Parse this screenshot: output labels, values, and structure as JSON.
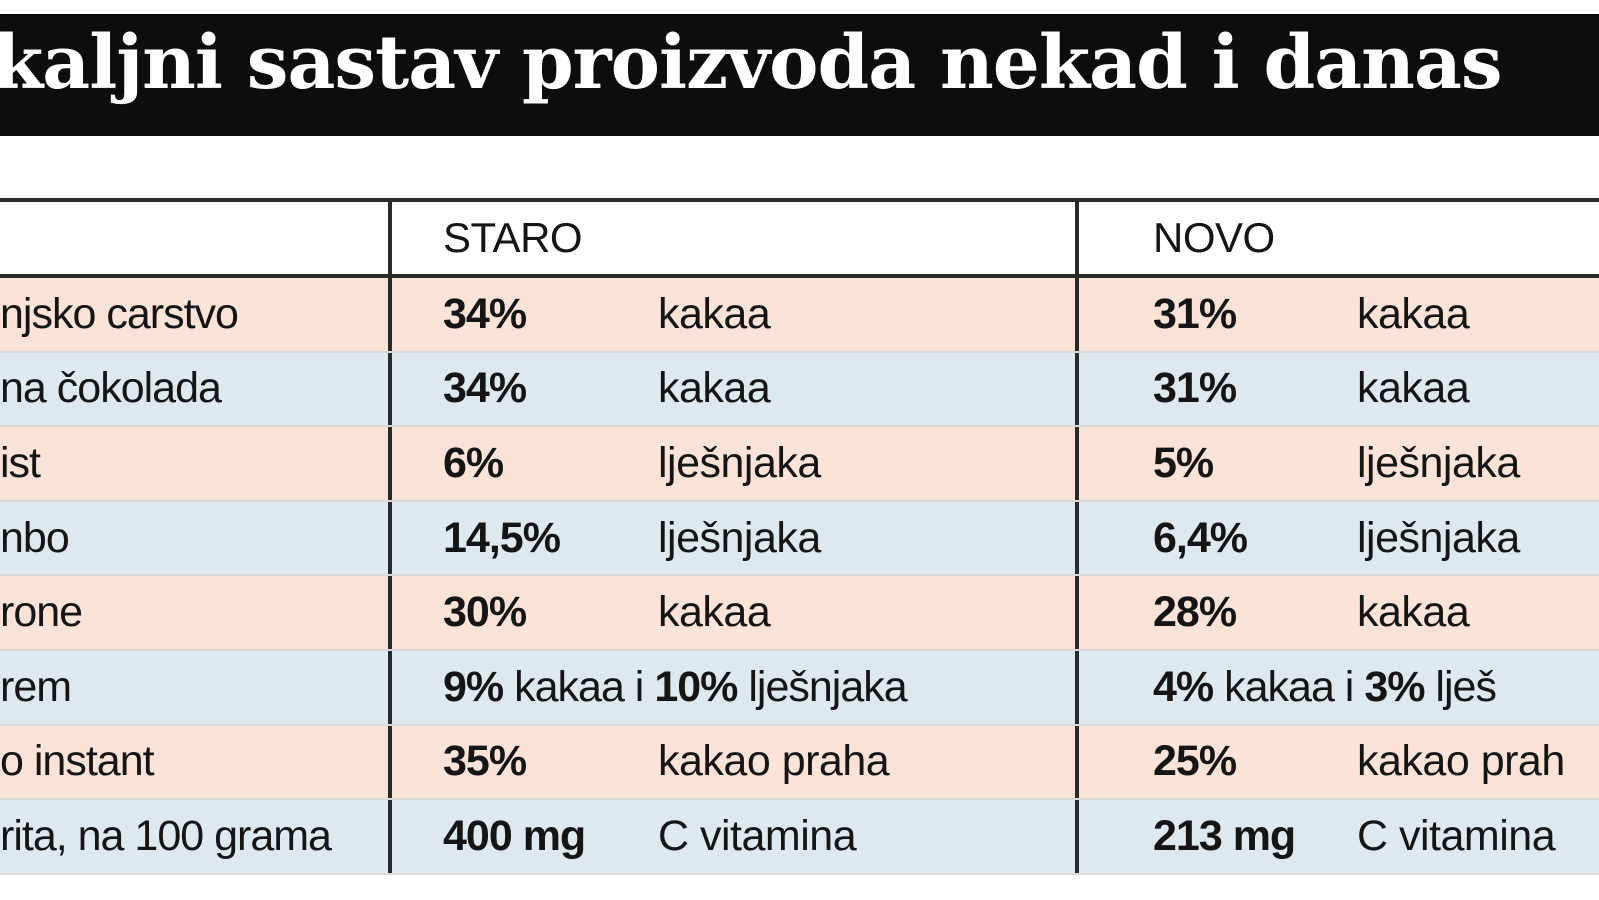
{
  "title": "kaljni sastav proizvoda nekad i danas",
  "chart_data": {
    "type": "table",
    "columns": [
      "",
      "STARO",
      "NOVO"
    ],
    "rows": [
      {
        "name": "njsko carstvo",
        "staro": {
          "value": "34%",
          "unit": "kakaa"
        },
        "novo": {
          "value": "31%",
          "unit": "kakaa"
        }
      },
      {
        "name": "na čokolada",
        "staro": {
          "value": "34%",
          "unit": "kakaa"
        },
        "novo": {
          "value": "31%",
          "unit": "kakaa"
        }
      },
      {
        "name": "ist",
        "staro": {
          "value": "6%",
          "unit": "lješnjaka"
        },
        "novo": {
          "value": "5%",
          "unit": "lješnjaka"
        }
      },
      {
        "name": "nbo",
        "staro": {
          "value": "14,5%",
          "unit": "lješnjaka"
        },
        "novo": {
          "value": "6,4%",
          "unit": "lješnjaka"
        }
      },
      {
        "name": "rone",
        "staro": {
          "value": "30%",
          "unit": "kakaa"
        },
        "novo": {
          "value": "28%",
          "unit": "kakaa"
        }
      },
      {
        "name": "rem",
        "staro": {
          "value": "9%",
          "unit": "kakaa i",
          "value2": "10%",
          "unit2": "lješnjaka"
        },
        "novo": {
          "value": "4%",
          "unit": "kakaa i",
          "value2": "3%",
          "unit2": "lješ"
        }
      },
      {
        "name": "o instant",
        "staro": {
          "value": "35%",
          "unit": "kakao praha"
        },
        "novo": {
          "value": "25%",
          "unit": "kakao prah"
        }
      },
      {
        "name": "rita, na 100 grama",
        "staro": {
          "value": "400 mg",
          "unit": "C vitamina"
        },
        "novo": {
          "value": "213 mg",
          "unit": "C vitamina"
        }
      }
    ]
  },
  "colors": {
    "title_bg": "#0d0d0d",
    "row_peach": "#fbe3d8",
    "row_blue": "#dde9ee",
    "rule": "#2a2a2a"
  }
}
